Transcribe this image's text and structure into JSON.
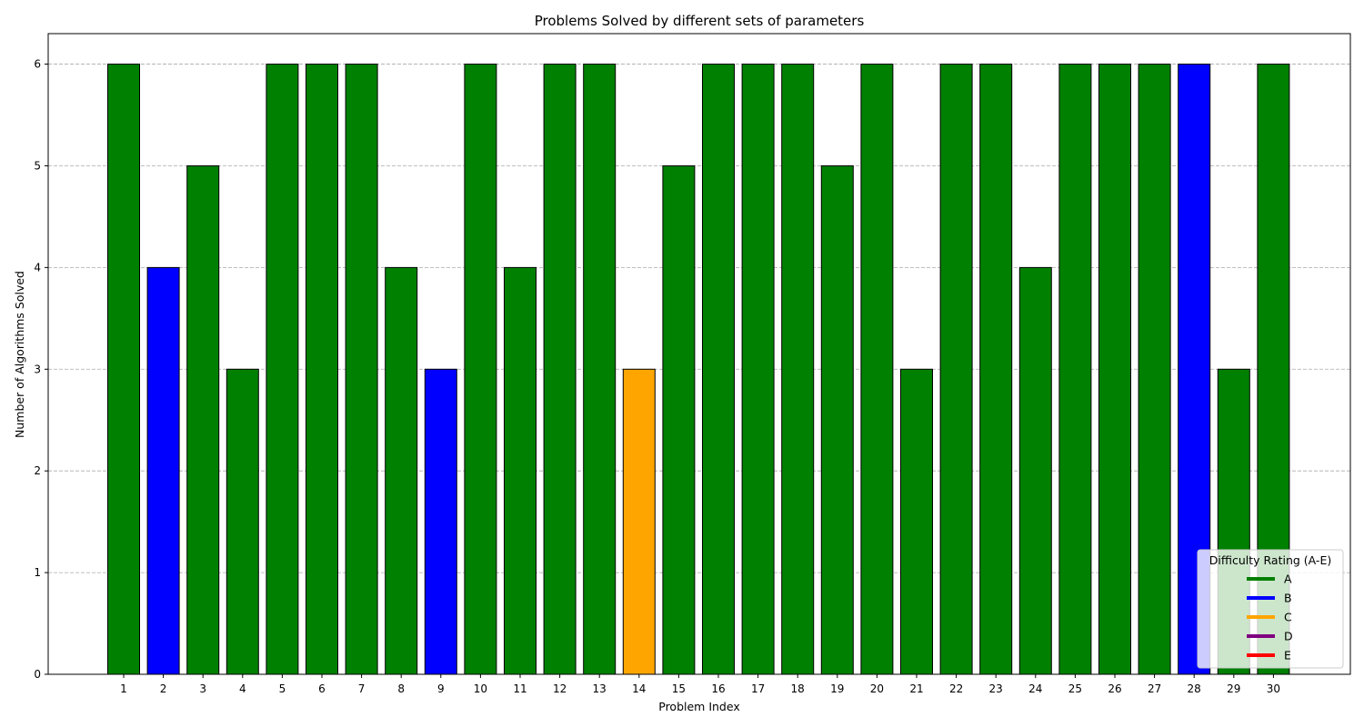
{
  "chart_data": {
    "type": "bar",
    "title": "Problems Solved by different sets of parameters",
    "xlabel": "Problem Index",
    "ylabel": "Number of Algorithms Solved",
    "ylim": [
      0,
      6.3
    ],
    "yticks": [
      0,
      1,
      2,
      3,
      4,
      5,
      6
    ],
    "grid": "y-dashed",
    "categories": [
      "1",
      "2",
      "3",
      "4",
      "5",
      "6",
      "7",
      "8",
      "9",
      "10",
      "11",
      "12",
      "13",
      "14",
      "15",
      "16",
      "17",
      "18",
      "19",
      "20",
      "21",
      "22",
      "23",
      "24",
      "25",
      "26",
      "27",
      "28",
      "29",
      "30"
    ],
    "values": [
      6,
      4,
      5,
      3,
      6,
      6,
      6,
      4,
      3,
      6,
      4,
      6,
      6,
      3,
      5,
      6,
      6,
      6,
      5,
      6,
      3,
      6,
      6,
      4,
      6,
      6,
      6,
      6,
      3,
      6
    ],
    "ratings": [
      "A",
      "B",
      "A",
      "A",
      "A",
      "A",
      "A",
      "A",
      "B",
      "A",
      "A",
      "A",
      "A",
      "C",
      "A",
      "A",
      "A",
      "A",
      "A",
      "A",
      "A",
      "A",
      "A",
      "A",
      "A",
      "A",
      "A",
      "B",
      "A",
      "A"
    ],
    "legend": {
      "title": "Difficulty Rating (A-E)",
      "placement": "lower-right",
      "entries": [
        {
          "label": "A",
          "color": "#008000"
        },
        {
          "label": "B",
          "color": "#0000ff"
        },
        {
          "label": "C",
          "color": "#ffa500"
        },
        {
          "label": "D",
          "color": "#800080"
        },
        {
          "label": "E",
          "color": "#ff0000"
        }
      ]
    }
  }
}
